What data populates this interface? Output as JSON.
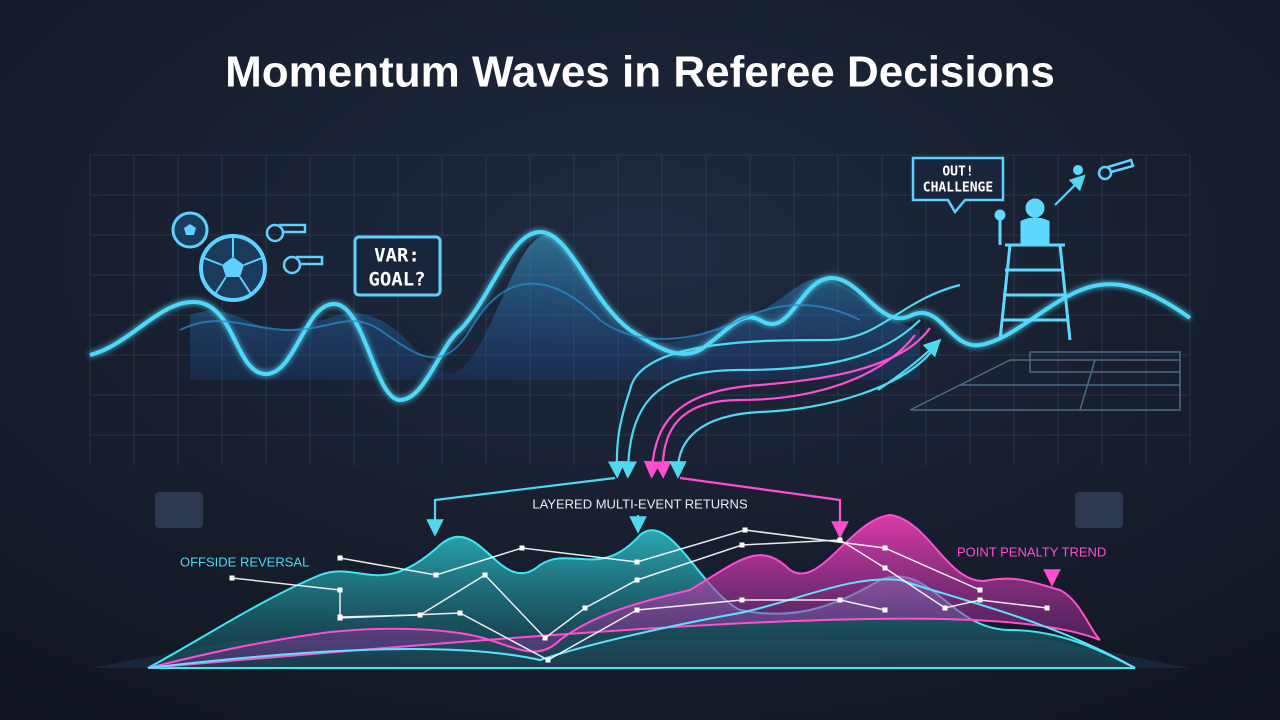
{
  "header": {
    "title": "Momentum Waves in Referee Decisions"
  },
  "callouts": {
    "var_sign": [
      "VAR:",
      "GOAL?"
    ],
    "umpire_bubble": [
      "OUT!",
      "CHALLENGE"
    ]
  },
  "annotations": {
    "center": "LAYERED MULTI-EVENT RETURNS",
    "left": "OFFSIDE REVERSAL",
    "right": "POINT PENALTY TREND"
  }
}
